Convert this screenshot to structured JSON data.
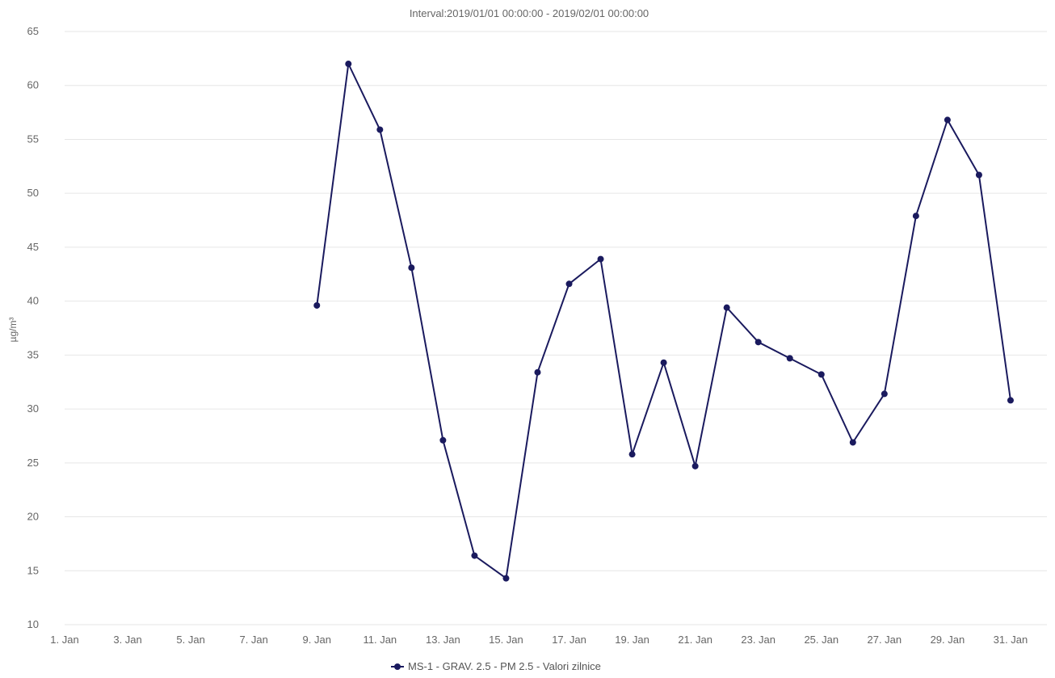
{
  "chart_data": {
    "type": "line",
    "subtitle": "Interval:2019/01/01 00:00:00 - 2019/02/01 00:00:00",
    "ylabel": "µg/m³",
    "xlabel": "",
    "ylim": [
      10,
      65
    ],
    "yticks": [
      10,
      15,
      20,
      25,
      30,
      35,
      40,
      45,
      50,
      55,
      60,
      65
    ],
    "xlim": [
      1,
      32
    ],
    "xtick_labels": [
      {
        "day": 1,
        "label": "1. Jan"
      },
      {
        "day": 3,
        "label": "3. Jan"
      },
      {
        "day": 5,
        "label": "5. Jan"
      },
      {
        "day": 7,
        "label": "7. Jan"
      },
      {
        "day": 9,
        "label": "9. Jan"
      },
      {
        "day": 11,
        "label": "11. Jan"
      },
      {
        "day": 13,
        "label": "13. Jan"
      },
      {
        "day": 15,
        "label": "15. Jan"
      },
      {
        "day": 17,
        "label": "17. Jan"
      },
      {
        "day": 19,
        "label": "19. Jan"
      },
      {
        "day": 21,
        "label": "21. Jan"
      },
      {
        "day": 23,
        "label": "23. Jan"
      },
      {
        "day": 25,
        "label": "25. Jan"
      },
      {
        "day": 27,
        "label": "27. Jan"
      },
      {
        "day": 29,
        "label": "29. Jan"
      },
      {
        "day": 31,
        "label": "31. Jan"
      }
    ],
    "grid": true,
    "legend_position": "bottom-center",
    "series": [
      {
        "name": "MS-1 - GRAV. 2.5 - PM 2.5 - Valori zilnice",
        "color": "#1a1a5e",
        "x": [
          9,
          10,
          11,
          12,
          13,
          14,
          15,
          16,
          17,
          18,
          19,
          20,
          21,
          22,
          23,
          24,
          25,
          26,
          27,
          28,
          29,
          30,
          31
        ],
        "y": [
          39.6,
          62.0,
          55.9,
          43.1,
          27.1,
          16.4,
          14.3,
          33.4,
          41.6,
          43.9,
          25.8,
          34.3,
          24.7,
          39.4,
          36.2,
          34.7,
          33.2,
          26.9,
          31.4,
          47.9,
          56.8,
          51.7,
          30.8
        ]
      }
    ]
  }
}
